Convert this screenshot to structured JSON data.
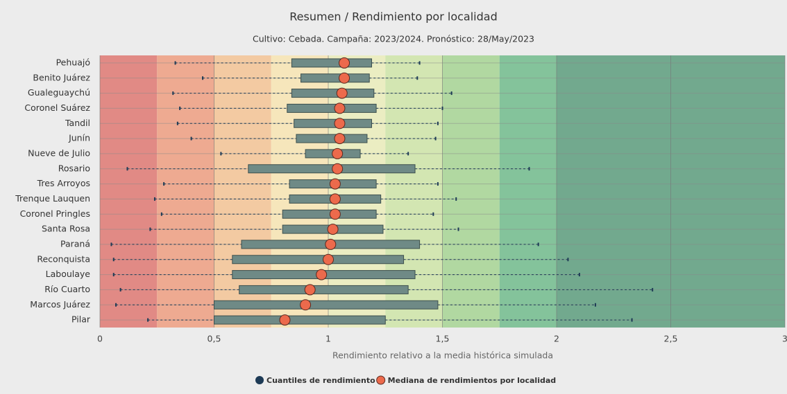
{
  "chart_data": {
    "type": "boxplot",
    "title": "Resumen / Rendimiento por localidad",
    "subtitle": "Cultivo: Cebada. Campaña: 2023/2024. Pronóstico: 28/May/2023",
    "x_label": "Rendimiento relativo a la media histórica simulada",
    "categories": [
      "Pehuajó",
      "Benito Juárez",
      "Gualeguaychú",
      "Coronel Suárez",
      "Tandil",
      "Junín",
      "Nueve de Julio",
      "Rosario",
      "Tres Arroyos",
      "Trenque Lauquen",
      "Coronel Pringles",
      "Santa Rosa",
      "Paraná",
      "Reconquista",
      "Laboulaye",
      "Río Cuarto",
      "Marcos Juárez",
      "Pilar"
    ],
    "series": [
      {
        "name": "Cuantiles de rendimiento",
        "color": "#1d3a55",
        "box_color": "#6f8a86",
        "whisker_low": [
          0.33,
          0.45,
          0.32,
          0.35,
          0.34,
          0.4,
          0.53,
          0.12,
          0.28,
          0.24,
          0.27,
          0.22,
          0.05,
          0.06,
          0.06,
          0.09,
          0.07,
          0.21
        ],
        "q1": [
          0.84,
          0.88,
          0.84,
          0.82,
          0.85,
          0.86,
          0.9,
          0.65,
          0.83,
          0.83,
          0.8,
          0.8,
          0.62,
          0.58,
          0.58,
          0.61,
          0.5,
          0.5
        ],
        "q3": [
          1.19,
          1.18,
          1.2,
          1.21,
          1.19,
          1.17,
          1.14,
          1.38,
          1.21,
          1.23,
          1.21,
          1.24,
          1.4,
          1.33,
          1.38,
          1.35,
          1.48,
          1.25
        ],
        "whisker_high": [
          1.4,
          1.39,
          1.54,
          1.5,
          1.48,
          1.47,
          1.35,
          1.88,
          1.48,
          1.56,
          1.46,
          1.57,
          1.92,
          2.05,
          2.1,
          2.42,
          2.17,
          2.33
        ]
      },
      {
        "name": "Mediana de rendimientos por localidad",
        "color": "#ec6a4c",
        "values": [
          1.07,
          1.07,
          1.06,
          1.05,
          1.05,
          1.05,
          1.04,
          1.04,
          1.03,
          1.03,
          1.03,
          1.02,
          1.01,
          1.0,
          0.97,
          0.92,
          0.9,
          0.81
        ]
      }
    ],
    "xlim": [
      0,
      3
    ],
    "xticks": [
      0,
      {
        "value": 0.5,
        "label": "0,5"
      },
      1,
      {
        "value": 1.5,
        "label": "1,5"
      },
      2,
      {
        "value": 2.5,
        "label": "2,5"
      },
      3
    ],
    "grid": true,
    "bands": {
      "edges": [
        0,
        0.25,
        0.5,
        0.75,
        1,
        1.25,
        1.5,
        1.75,
        2,
        3
      ],
      "colors": [
        "#e18a85",
        "#eeaa91",
        "#f3caa2",
        "#f6e6bb",
        "#ebedc2",
        "#d3e6b2",
        "#b1d8a1",
        "#84c39b",
        "#72a98e"
      ]
    },
    "legend": "bottom"
  }
}
